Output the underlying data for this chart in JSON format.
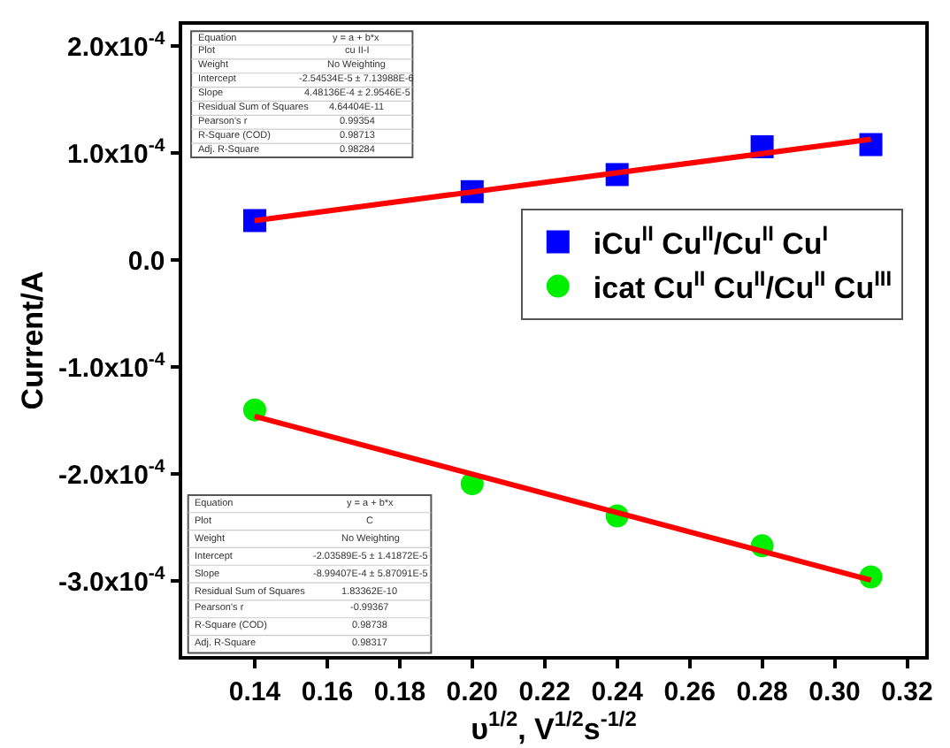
{
  "chart_data": {
    "type": "scatter",
    "xlabel": "υ$^{1/2}$, V$^{1/2}$s$^{-1/2}$",
    "ylabel": "Current/A",
    "xlim": [
      0.12,
      0.325
    ],
    "xticks": [
      0.14,
      0.16,
      0.18,
      {
        "value": 0.2,
        "label": "0.20"
      },
      0.22,
      0.24,
      0.26,
      0.28,
      {
        "value": 0.3,
        "label": "0.30"
      },
      0.32
    ],
    "ylim": [
      -0.00037,
      0.00022
    ],
    "yticks": [
      {
        "value": 0.0002,
        "label": "2.0x10$^{-4}$"
      },
      {
        "value": 0.0001,
        "label": "1.0x10$^{-4}$"
      },
      {
        "value": 0,
        "label": "0.0"
      },
      {
        "value": -0.0001,
        "label": "-1.0x10$^{-4}$"
      },
      {
        "value": -0.0002,
        "label": "-2.0x10$^{-4}$"
      },
      {
        "value": -0.0003,
        "label": "-3.0x10$^{-4}$"
      }
    ],
    "grid": false,
    "legend": "right",
    "series": [
      {
        "name": "iCu$^{II}$ Cu$^{II}$/Cu$^{II}$ Cu$^{I}$",
        "marker": "square",
        "color": "#0000ff",
        "x": [
          0.14,
          0.2,
          0.24,
          0.28,
          0.31
        ],
        "values": [
          3.7e-05,
          6.4e-05,
          8e-05,
          0.000106,
          0.000108
        ]
      },
      {
        "name": "icat Cu$^{II}$ Cu$^{II}$/Cu$^{II}$ Cu$^{III}$",
        "marker": "circle",
        "color": "#00ee00",
        "x": [
          0.14,
          0.2,
          0.24,
          0.28,
          0.31
        ],
        "values": [
          -0.00014,
          -0.000209,
          -0.000239,
          -0.000267,
          -0.000296
        ]
      },
      {
        "type": "line",
        "color": "#ff0000",
        "x": [
          0.14,
          0.31
        ],
        "values": [
          3.7e-05,
          0.000113
        ]
      },
      {
        "type": "line",
        "color": "#ff0000",
        "x": [
          0.14,
          0.31
        ],
        "values": [
          -0.000146,
          -0.000299
        ]
      }
    ],
    "annotations": [
      "Equation",
      "y = a + b*x",
      "Plot",
      "cu II-I",
      "Weight",
      "No Weighting",
      "Intercept",
      "-2.54534E-5 ± 7.13988E-6",
      "Slope",
      "4.48136E-4 ± 2.9546E-5",
      "Residual Sum of Squares",
      "4.64404E-11",
      "Pearson's r",
      "0.99354",
      "R-Square (COD)",
      "0.98713",
      "Adj. R-Square",
      "0.98284",
      "Equation",
      "y = a + b*x",
      "Plot",
      "C",
      "Weight",
      "No Weighting",
      "Intercept",
      "-2.03589E-5 ± 1.41872E-5",
      "Slope",
      "-8.99407E-4 ± 5.87091E-5",
      "Residual Sum of Squares",
      "1.83362E-10",
      "Pearson's r",
      "-0.99367",
      "R-Square (COD)",
      "0.98738",
      "Adj. R-Square",
      "0.98317"
    ]
  }
}
